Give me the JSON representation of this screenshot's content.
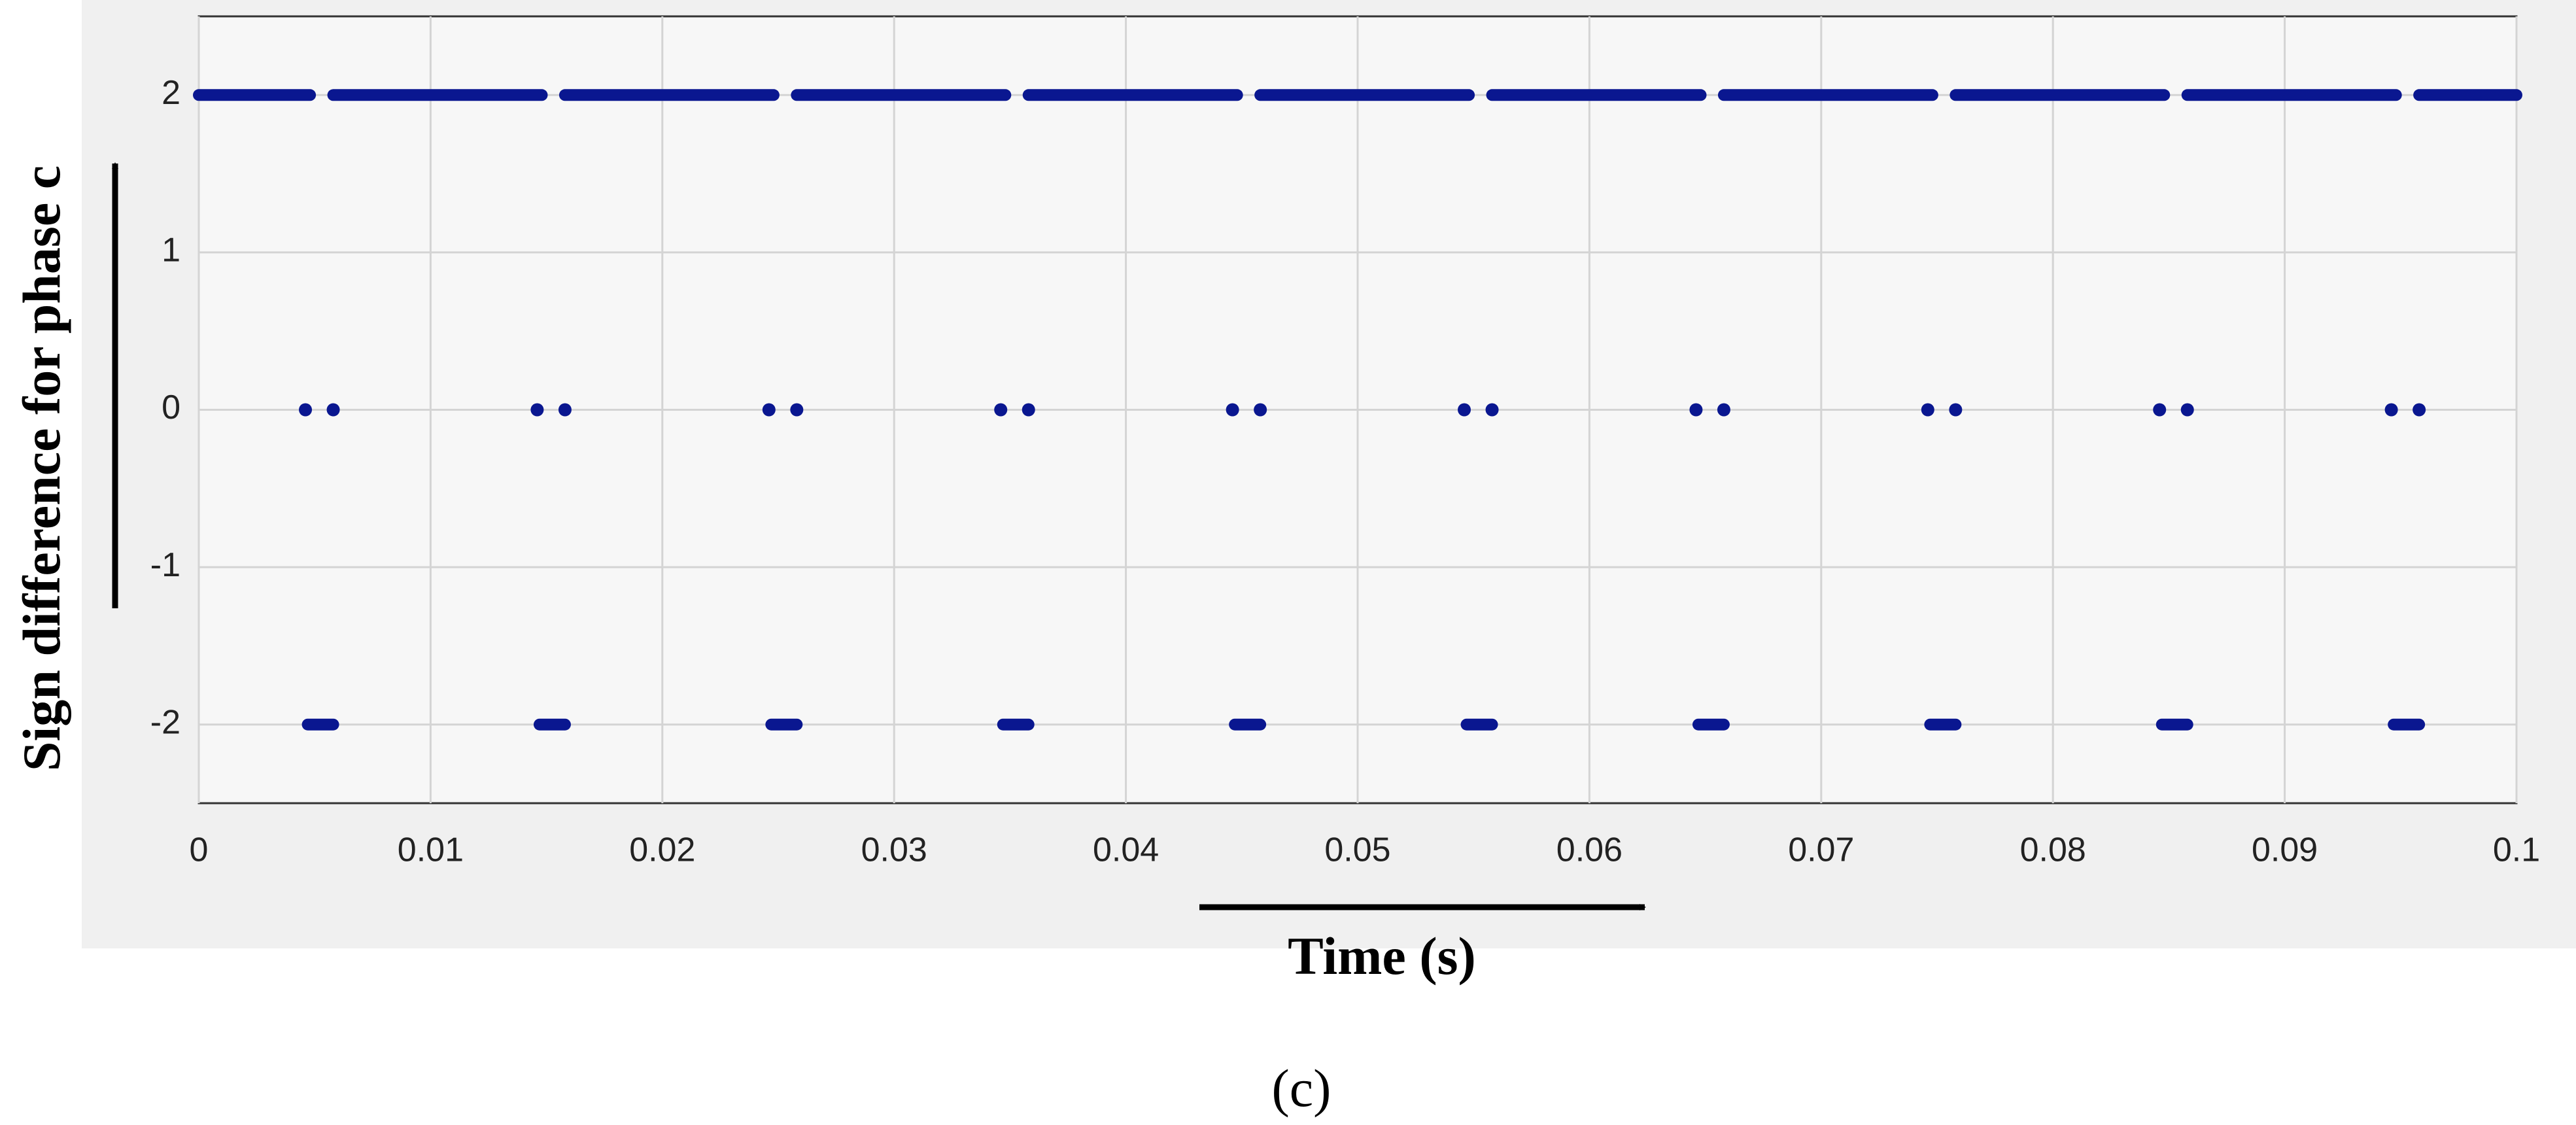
{
  "chart_data": {
    "type": "line",
    "ylabel": "Sign difference for phase c",
    "xlabel": "Time (s)",
    "caption": "(c)",
    "xlim": [
      0,
      0.1
    ],
    "xticks": [
      0,
      0.01,
      0.02,
      0.03,
      0.04,
      0.05,
      0.06,
      0.07,
      0.08,
      0.09,
      0.1
    ],
    "ylim": [
      -2.5,
      2.5
    ],
    "yticks": [
      -2,
      -1,
      0,
      1,
      2
    ],
    "grid": true,
    "series": [
      {
        "color": "#0a1790",
        "mode": "lines",
        "x": [
          0,
          0.0048,
          0.0053,
          0.0058,
          0.0148,
          0.0153,
          0.0158,
          0.0248,
          0.0253,
          0.0258,
          0.0348,
          0.0353,
          0.0358,
          0.0448,
          0.0453,
          0.0458,
          0.0548,
          0.0553,
          0.0558,
          0.0648,
          0.0653,
          0.0658,
          0.0748,
          0.0753,
          0.0758,
          0.0848,
          0.0853,
          0.0858,
          0.0948,
          0.0953,
          0.0958,
          0.1
        ],
        "values": [
          2,
          2,
          null,
          2,
          2,
          null,
          2,
          2,
          null,
          2,
          2,
          null,
          2,
          2,
          null,
          2,
          2,
          null,
          2,
          2,
          null,
          2,
          2,
          null,
          2,
          2,
          null,
          2,
          2,
          null,
          2,
          2
        ]
      },
      {
        "color": "#0a1790",
        "mode": "markers",
        "x": [
          0.0046,
          0.0058,
          0.0146,
          0.0158,
          0.0246,
          0.0258,
          0.0346,
          0.0358,
          0.0446,
          0.0458,
          0.0546,
          0.0558,
          0.0646,
          0.0658,
          0.0746,
          0.0758,
          0.0846,
          0.0858,
          0.0946,
          0.0958
        ],
        "values": [
          0,
          0,
          0,
          0,
          0,
          0,
          0,
          0,
          0,
          0,
          0,
          0,
          0,
          0,
          0,
          0,
          0,
          0,
          0,
          0
        ]
      },
      {
        "color": "#0a1790",
        "mode": "lines",
        "x": [
          0.0047,
          0.0058,
          0.0063,
          0.0147,
          0.0158,
          0.0163,
          0.0247,
          0.0258,
          0.0263,
          0.0347,
          0.0358,
          0.0363,
          0.0447,
          0.0458,
          0.0463,
          0.0547,
          0.0558,
          0.0563,
          0.0647,
          0.0658,
          0.0663,
          0.0747,
          0.0758,
          0.0763,
          0.0847,
          0.0858,
          0.0863,
          0.0947,
          0.0958
        ],
        "values": [
          -2,
          -2,
          null,
          -2,
          -2,
          null,
          -2,
          -2,
          null,
          -2,
          -2,
          null,
          -2,
          -2,
          null,
          -2,
          -2,
          null,
          -2,
          -2,
          null,
          -2,
          -2,
          null,
          -2,
          -2,
          null,
          -2,
          -2
        ]
      }
    ]
  }
}
